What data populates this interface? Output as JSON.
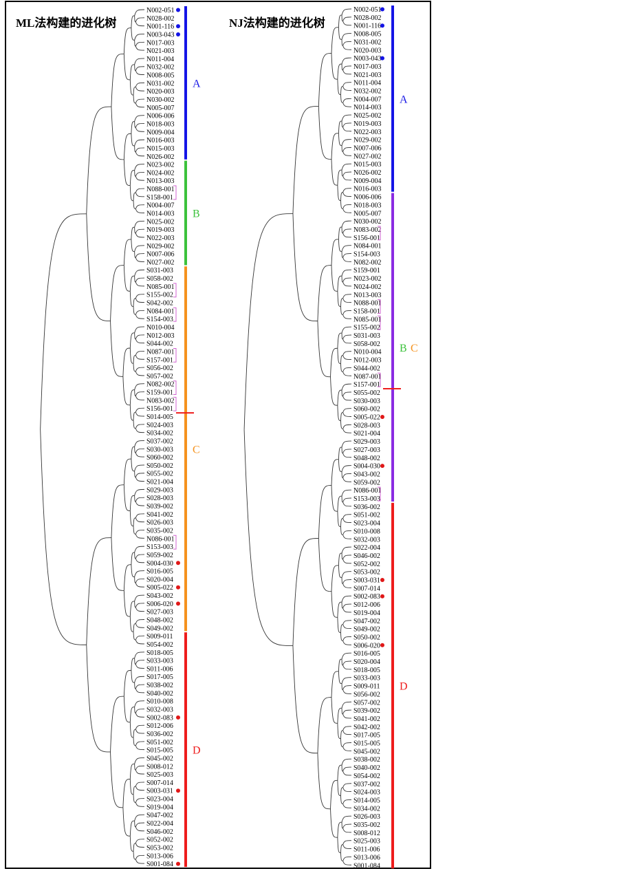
{
  "ml": {
    "title": "ML法构建的进化树",
    "leaves": [
      "N002-051",
      "N028-002",
      "N001-116",
      "N003-043",
      "N017-003",
      "N021-003",
      "N011-004",
      "N032-002",
      "N008-005",
      "N031-002",
      "N020-003",
      "N030-002",
      "N005-007",
      "N006-006",
      "N018-003",
      "N009-004",
      "N016-003",
      "N015-003",
      "N026-002",
      "N023-002",
      "N024-002",
      "N013-003",
      "N088-001",
      "S158-001",
      "N004-007",
      "N014-003",
      "N025-002",
      "N019-003",
      "N022-003",
      "N029-002",
      "N007-006",
      "N027-002",
      "S031-003",
      "S058-002",
      "N085-001",
      "S155-002",
      "S042-002",
      "N084-001",
      "S154-003",
      "N010-004",
      "N012-003",
      "S044-002",
      "N087-001",
      "S157-001",
      "S056-002",
      "S057-002",
      "N082-002",
      "S159-001",
      "N083-002",
      "S156-001",
      "S014-005",
      "S024-003",
      "S034-002",
      "S037-002",
      "S030-003",
      "S060-002",
      "S050-002",
      "S055-002",
      "S021-004",
      "S029-003",
      "S028-003",
      "S039-002",
      "S041-002",
      "S026-003",
      "S035-002",
      "N086-001",
      "S153-003",
      "S059-002",
      "S004-030",
      "S016-005",
      "S020-004",
      "S005-022",
      "S043-002",
      "S006-020",
      "S027-003",
      "S048-002",
      "S049-002",
      "S009-011",
      "S054-002",
      "S018-005",
      "S033-003",
      "S011-006",
      "S017-005",
      "S038-002",
      "S040-002",
      "S010-008",
      "S032-003",
      "S002-083",
      "S012-006",
      "S036-002",
      "S051-002",
      "S015-005",
      "S045-002",
      "S008-012",
      "S025-003",
      "S007-014",
      "S003-031",
      "S023-004",
      "S019-004",
      "S047-002",
      "S022-004",
      "S046-002",
      "S052-002",
      "S053-002",
      "S013-006",
      "S001-084"
    ],
    "blue_dots": [
      "N002-051",
      "N001-116",
      "N003-043"
    ],
    "red_dots": [
      "S004-030",
      "S005-022",
      "S006-020",
      "S002-083",
      "S003-031",
      "S001-084"
    ],
    "pairs": [
      [
        "N088-001",
        "S158-001"
      ],
      [
        "N085-001",
        "S155-002"
      ],
      [
        "N084-001",
        "S154-003"
      ],
      [
        "N087-001",
        "S157-001"
      ],
      [
        "N082-002",
        "S159-001"
      ],
      [
        "N083-002",
        "S156-001"
      ],
      [
        "N086-001",
        "S153-003"
      ]
    ],
    "clades": [
      {
        "label": "A",
        "from": "N002-051",
        "to": "N026-002",
        "color": "#1414e6"
      },
      {
        "label": "B",
        "from": "N023-002",
        "to": "N027-002",
        "color": "#3cc23c"
      },
      {
        "label": "C",
        "from": "S031-003",
        "to": "S049-002",
        "color": "#f5921e"
      },
      {
        "label": "D",
        "from": "S009-011",
        "to": "S001-084",
        "color": "#ee1c1c"
      }
    ],
    "root_marker_after": "S156-001"
  },
  "nj": {
    "title": "NJ法构建的进化树",
    "leaves": [
      "N002-051",
      "N028-002",
      "N001-116",
      "N008-005",
      "N031-002",
      "N020-003",
      "N003-043",
      "N017-003",
      "N021-003",
      "N011-004",
      "N032-002",
      "N004-007",
      "N014-003",
      "N025-002",
      "N019-003",
      "N022-003",
      "N029-002",
      "N007-006",
      "N027-002",
      "N015-003",
      "N026-002",
      "N009-004",
      "N016-003",
      "N006-006",
      "N018-003",
      "N005-007",
      "N030-002",
      "N083-002",
      "S156-001",
      "N084-001",
      "S154-003",
      "N082-002",
      "S159-001",
      "N023-002",
      "N024-002",
      "N013-003",
      "N088-001",
      "S158-001",
      "N085-001",
      "S155-002",
      "S031-003",
      "S058-002",
      "N010-004",
      "N012-003",
      "S044-002",
      "N087-001",
      "S157-001",
      "S055-002",
      "S030-003",
      "S060-002",
      "S005-022",
      "S028-003",
      "S021-004",
      "S029-003",
      "S027-003",
      "S048-002",
      "S004-030",
      "S043-002",
      "S059-002",
      "N086-001",
      "S153-003",
      "S036-002",
      "S051-002",
      "S023-004",
      "S010-008",
      "S032-003",
      "S022-004",
      "S046-002",
      "S052-002",
      "S053-002",
      "S003-031",
      "S007-014",
      "S002-083",
      "S012-006",
      "S019-004",
      "S047-002",
      "S049-002",
      "S050-002",
      "S006-020",
      "S016-005",
      "S020-004",
      "S018-005",
      "S033-003",
      "S009-011",
      "S056-002",
      "S057-002",
      "S039-002",
      "S041-002",
      "S042-002",
      "S017-005",
      "S015-005",
      "S045-002",
      "S038-002",
      "S040-002",
      "S054-002",
      "S037-002",
      "S024-003",
      "S014-005",
      "S034-002",
      "S026-003",
      "S035-002",
      "S008-012",
      "S025-003",
      "S011-006",
      "S013-006",
      "S001-084"
    ],
    "blue_dots": [
      "N002-051",
      "N001-116",
      "N003-043"
    ],
    "red_dots": [
      "S005-022",
      "S004-030",
      "S003-031",
      "S002-083",
      "S006-020"
    ],
    "pairs": [
      [
        "N083-002",
        "S156-001"
      ],
      [
        "N088-001",
        "S158-001"
      ],
      [
        "N085-001",
        "S155-002"
      ],
      [
        "N087-001",
        "S157-001"
      ],
      [
        "N086-001",
        "S153-003"
      ]
    ],
    "clades": [
      {
        "label": "A",
        "from": "N002-051",
        "to": "N016-003",
        "color": "#1414e6"
      },
      {
        "label": "BC",
        "from": "N006-006",
        "to": "S153-003",
        "color": "#8a2be2"
      },
      {
        "label": "D",
        "from": "S036-002",
        "to": "S001-084",
        "color": "#ee1c1c"
      }
    ],
    "root_marker_after": "S157-001"
  },
  "labels": {
    "B": "B",
    "C": "C",
    "B_color": "#3cc23c",
    "C_color": "#f5921e"
  },
  "colors": {
    "line": "#333333",
    "text": "#000000",
    "pair_bracket": "#d060d0",
    "dot_blue": "#1414e6",
    "dot_red": "#e01818",
    "root_marker": "#ee1c1c"
  }
}
